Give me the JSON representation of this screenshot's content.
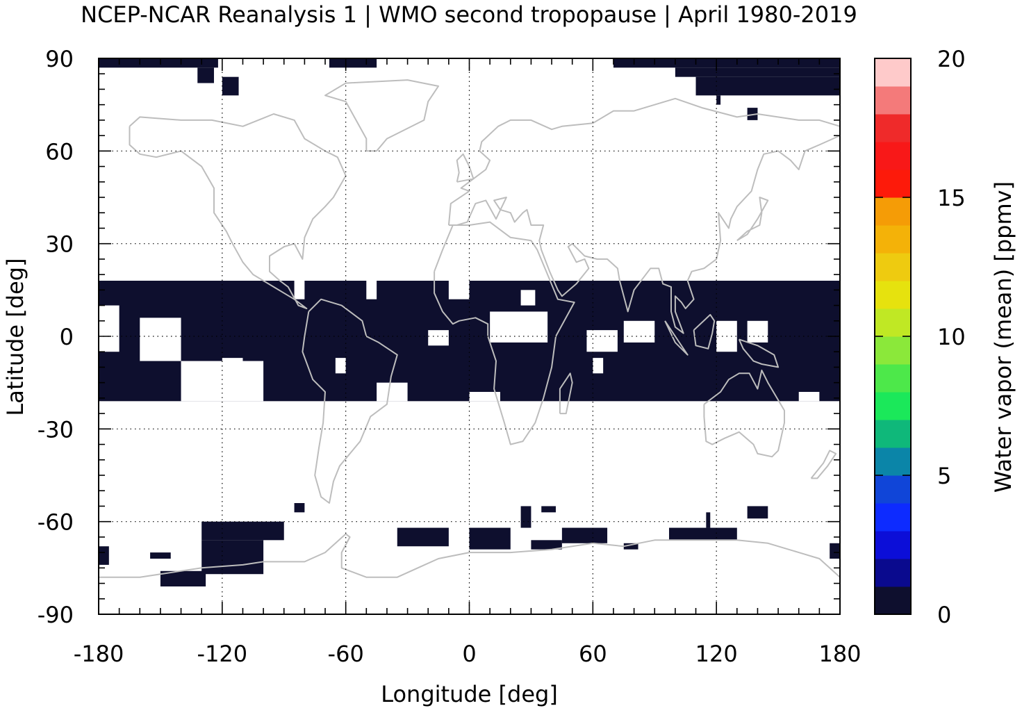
{
  "chart_data": {
    "type": "heatmap",
    "title": "NCEP-NCAR Reanalysis 1 | WMO second tropopause | April 1980-2019",
    "xlabel": "Longitude [deg]",
    "ylabel": "Latitude [deg]",
    "xlim": [
      -180,
      180
    ],
    "ylim": [
      -90,
      90
    ],
    "xticks": [
      "-180",
      "-120",
      "-60",
      "0",
      "60",
      "120",
      "180"
    ],
    "yticks": [
      "90",
      "60",
      "30",
      "0",
      "-30",
      "-60",
      "-90"
    ],
    "grid": true,
    "colorbar": {
      "label": "Water vapor (mean) [ppmv]",
      "range": [
        0,
        20
      ],
      "ticks": [
        "0",
        "5",
        "10",
        "15",
        "20"
      ],
      "colors": [
        "#0e0f2e",
        "#0a0a8e",
        "#0c0ed8",
        "#0d2bff",
        "#1045d8",
        "#0e67c0",
        "#0b85a8",
        "#0fb87a",
        "#1be85a",
        "#4de84a",
        "#8be83a",
        "#c0e824",
        "#e6e20e",
        "#eecb10",
        "#f4b208",
        "#f59c06",
        "#fb6a0c",
        "#fd1a0a",
        "#f81818",
        "#ef2a2a",
        "#f47a7a",
        "#fecaca"
      ]
    },
    "data_value_shown": 0,
    "data_color": "#0e0f2e",
    "missing_color": "#ffffff",
    "coastline_color": "#bdbdbd",
    "regions": [
      {
        "lon": [
          -180,
          180
        ],
        "lat": [
          -21,
          18
        ]
      },
      {
        "lon": [
          -180,
          -122
        ],
        "lat": [
          87,
          90
        ]
      },
      {
        "lon": [
          -132,
          -124
        ],
        "lat": [
          82,
          87
        ]
      },
      {
        "lon": [
          -120,
          -112
        ],
        "lat": [
          78,
          84
        ]
      },
      {
        "lon": [
          -68,
          -45
        ],
        "lat": [
          87,
          90
        ]
      },
      {
        "lon": [
          70,
          180
        ],
        "lat": [
          87,
          90
        ]
      },
      {
        "lon": [
          100,
          180
        ],
        "lat": [
          84,
          87
        ]
      },
      {
        "lon": [
          110,
          180
        ],
        "lat": [
          78,
          84
        ]
      },
      {
        "lon": [
          120,
          122
        ],
        "lat": [
          75,
          78
        ]
      },
      {
        "lon": [
          135,
          140
        ],
        "lat": [
          70,
          74
        ]
      },
      {
        "lon": [
          -130,
          -90
        ],
        "lat": [
          -66,
          -60
        ]
      },
      {
        "lon": [
          -130,
          -100
        ],
        "lat": [
          -77,
          -66
        ]
      },
      {
        "lon": [
          -150,
          -128
        ],
        "lat": [
          -81,
          -76
        ]
      },
      {
        "lon": [
          -155,
          -145
        ],
        "lat": [
          -72,
          -70
        ]
      },
      {
        "lon": [
          -180,
          -175
        ],
        "lat": [
          -74,
          -68
        ]
      },
      {
        "lon": [
          -35,
          -10
        ],
        "lat": [
          -68,
          -62
        ]
      },
      {
        "lon": [
          0,
          20
        ],
        "lat": [
          -69,
          -62
        ]
      },
      {
        "lon": [
          25,
          30
        ],
        "lat": [
          -62,
          -55
        ]
      },
      {
        "lon": [
          35,
          42
        ],
        "lat": [
          -57,
          -55
        ]
      },
      {
        "lon": [
          45,
          67
        ],
        "lat": [
          -67,
          -62
        ]
      },
      {
        "lon": [
          30,
          45
        ],
        "lat": [
          -69,
          -66
        ]
      },
      {
        "lon": [
          75,
          82
        ],
        "lat": [
          -69,
          -67
        ]
      },
      {
        "lon": [
          97,
          130
        ],
        "lat": [
          -66,
          -62
        ]
      },
      {
        "lon": [
          115,
          117
        ],
        "lat": [
          -62,
          -57
        ]
      },
      {
        "lon": [
          135,
          145
        ],
        "lat": [
          -59,
          -55
        ]
      },
      {
        "lon": [
          175,
          180
        ],
        "lat": [
          -72,
          -67
        ]
      },
      {
        "lon": [
          -85,
          -80
        ],
        "lat": [
          -57,
          -54
        ]
      }
    ],
    "gaps": [
      {
        "lon": [
          -180,
          -170
        ],
        "lat": [
          -5,
          10
        ]
      },
      {
        "lon": [
          -160,
          -140
        ],
        "lat": [
          -8,
          6
        ]
      },
      {
        "lon": [
          -140,
          -100
        ],
        "lat": [
          -21,
          -8
        ]
      },
      {
        "lon": [
          -120,
          -110
        ],
        "lat": [
          -12,
          -7
        ]
      },
      {
        "lon": [
          -65,
          -60
        ],
        "lat": [
          -12,
          -7
        ]
      },
      {
        "lon": [
          -45,
          -30
        ],
        "lat": [
          -21,
          -15
        ]
      },
      {
        "lon": [
          -85,
          -80
        ],
        "lat": [
          12,
          18
        ]
      },
      {
        "lon": [
          -50,
          -45
        ],
        "lat": [
          12,
          18
        ]
      },
      {
        "lon": [
          -20,
          -10
        ],
        "lat": [
          -3,
          2
        ]
      },
      {
        "lon": [
          -10,
          0
        ],
        "lat": [
          12,
          18
        ]
      },
      {
        "lon": [
          10,
          38
        ],
        "lat": [
          -2,
          8
        ]
      },
      {
        "lon": [
          25,
          32
        ],
        "lat": [
          10,
          15
        ]
      },
      {
        "lon": [
          57,
          72
        ],
        "lat": [
          -5,
          2
        ]
      },
      {
        "lon": [
          75,
          90
        ],
        "lat": [
          -2,
          5
        ]
      },
      {
        "lon": [
          60,
          65
        ],
        "lat": [
          -12,
          -7
        ]
      },
      {
        "lon": [
          120,
          130
        ],
        "lat": [
          -5,
          5
        ]
      },
      {
        "lon": [
          135,
          145
        ],
        "lat": [
          -2,
          5
        ]
      },
      {
        "lon": [
          100,
          110
        ],
        "lat": [
          18,
          22
        ]
      },
      {
        "lon": [
          160,
          170
        ],
        "lat": [
          -21,
          -18
        ]
      },
      {
        "lon": [
          0,
          15
        ],
        "lat": [
          -21,
          -18
        ]
      }
    ]
  }
}
